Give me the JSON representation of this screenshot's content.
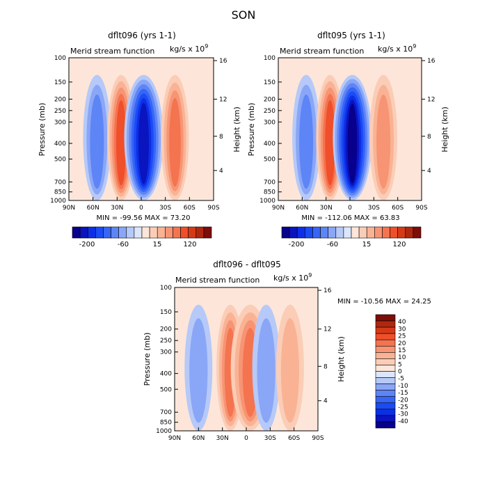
{
  "page_title": "SON",
  "colors": {
    "neg": [
      "#08008c",
      "#0a14bf",
      "#0c2fe6",
      "#1b4bf5",
      "#3765f5",
      "#5e85f6",
      "#8aa6f7",
      "#b6c9f8",
      "#dbe6fb"
    ],
    "pos": [
      "#fde6d9",
      "#fbcdb7",
      "#f9b394",
      "#f79474",
      "#f47450",
      "#ef4f2a",
      "#d53a18",
      "#b02710",
      "#7e0c08"
    ]
  },
  "chart_data": [
    {
      "id": "left",
      "type": "contour",
      "title": "dflt096 (yrs 1-1)",
      "subtitle": "Merid stream function",
      "units": "kg/s x 10",
      "units_exp": "9",
      "xlabel": "",
      "ylabel": "Pressure (mb)",
      "ylabel_right": "Height (km)",
      "xticks": [
        "90N",
        "60N",
        "30N",
        "0",
        "30S",
        "60S",
        "90S"
      ],
      "yticks": [
        "100",
        "150",
        "200",
        "250",
        "300",
        "400",
        "500",
        "700",
        "850",
        "1000"
      ],
      "yticks_right": [
        "16",
        "12",
        "8",
        "4"
      ],
      "min_max": "MIN = -99.56   MAX =  73.20",
      "colorbar_labels": [
        "-200",
        "-60",
        "15",
        "120"
      ],
      "cells": [
        {
          "lat": 55,
          "value": -35,
          "core_lat": 55
        },
        {
          "lat": 25,
          "value": 70,
          "core_lat": 25
        },
        {
          "lat": 0,
          "value": -95,
          "core_lat": -3
        },
        {
          "lat": -42,
          "value": 50,
          "core_lat": -42
        }
      ]
    },
    {
      "id": "right",
      "type": "contour",
      "title": "dflt095 (yrs 1-1)",
      "subtitle": "Merid stream function",
      "units": "kg/s x 10",
      "units_exp": "9",
      "xlabel": "",
      "ylabel": "Pressure (mb)",
      "ylabel_right": "Height (km)",
      "xticks": [
        "90N",
        "60N",
        "30N",
        "0",
        "30S",
        "60S",
        "90S"
      ],
      "yticks": [
        "100",
        "150",
        "200",
        "250",
        "300",
        "400",
        "500",
        "700",
        "850",
        "1000"
      ],
      "yticks_right": [
        "16",
        "12",
        "8",
        "4"
      ],
      "min_max": "MIN = -112.06   MAX =  63.83",
      "colorbar_labels": [
        "-200",
        "-60",
        "15",
        "120"
      ],
      "cells": [
        {
          "lat": 55,
          "value": -30,
          "core_lat": 55
        },
        {
          "lat": 25,
          "value": 60,
          "core_lat": 25
        },
        {
          "lat": 0,
          "value": -110,
          "core_lat": -3
        },
        {
          "lat": -42,
          "value": 40,
          "core_lat": -42
        }
      ]
    },
    {
      "id": "diff",
      "type": "contour",
      "title": "dflt096 - dflt095",
      "subtitle": "Merid stream function",
      "units": "kg/s x 10",
      "units_exp": "9",
      "xlabel": "",
      "ylabel": "Pressure (mb)",
      "ylabel_right": "Height (km)",
      "xticks": [
        "90N",
        "60N",
        "30N",
        "0",
        "30S",
        "60S",
        "90S"
      ],
      "yticks": [
        "100",
        "150",
        "200",
        "250",
        "300",
        "400",
        "500",
        "700",
        "850",
        "1000"
      ],
      "yticks_right": [
        "16",
        "12",
        "8",
        "4"
      ],
      "min_max": "MIN = -10.56   MAX =  24.25",
      "colorbar_labels": [
        "40",
        "30",
        "25",
        "20",
        "15",
        "10",
        "5",
        "0",
        "-5",
        "-10",
        "-15",
        "-20",
        "-25",
        "-30",
        "-40"
      ],
      "cells": [
        {
          "lat": 60,
          "value": -5,
          "core_lat": 60
        },
        {
          "lat": 20,
          "value": 15,
          "core_lat": 20
        },
        {
          "lat": 0,
          "value": 18,
          "core_lat": -5
        },
        {
          "lat": -25,
          "value": -8,
          "core_lat": -25
        },
        {
          "lat": -55,
          "value": 4,
          "core_lat": -55
        }
      ]
    }
  ]
}
